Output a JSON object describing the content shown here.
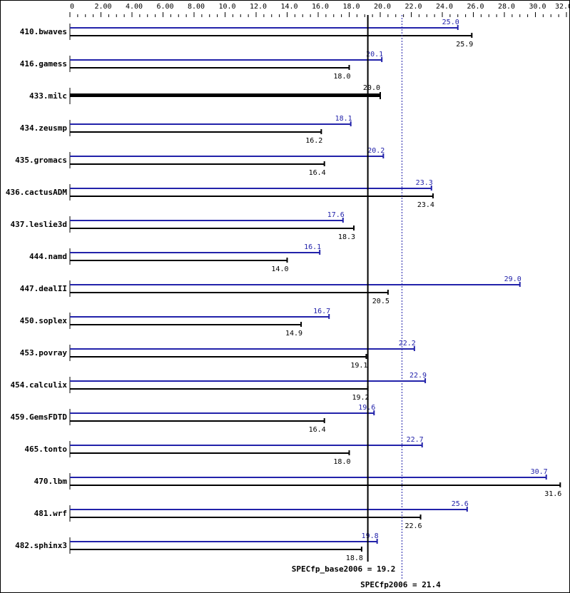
{
  "chart_data": {
    "type": "bar",
    "orientation": "horizontal",
    "xlim": [
      0,
      32
    ],
    "tick_labels": [
      "0",
      "2.00",
      "4.00",
      "6.00",
      "8.00",
      "10.0",
      "12.0",
      "14.0",
      "16.0",
      "18.0",
      "20.0",
      "22.0",
      "24.0",
      "26.0",
      "28.0",
      "30.0",
      "32.0"
    ],
    "tick_values": [
      0,
      2,
      4,
      6,
      8,
      10,
      12,
      14,
      16,
      18,
      20,
      22,
      24,
      26,
      28,
      30,
      32
    ],
    "categories": [
      "410.bwaves",
      "416.gamess",
      "433.milc",
      "434.zeusmp",
      "435.gromacs",
      "436.cactusADM",
      "437.leslie3d",
      "444.namd",
      "447.dealII",
      "450.soplex",
      "453.povray",
      "454.calculix",
      "459.GemsFDTD",
      "465.tonto",
      "470.lbm",
      "481.wrf",
      "482.sphinx3"
    ],
    "series": [
      {
        "key": "peak",
        "values": [
          25.0,
          20.1,
          null,
          18.1,
          20.2,
          23.3,
          17.6,
          16.1,
          29.0,
          16.7,
          22.2,
          22.9,
          19.6,
          22.7,
          30.7,
          25.6,
          19.8
        ],
        "color": "#2222aa"
      },
      {
        "key": "base",
        "values": [
          25.9,
          18.0,
          20.0,
          16.2,
          16.4,
          23.4,
          18.3,
          14.0,
          20.5,
          14.9,
          19.1,
          19.2,
          16.4,
          18.0,
          31.6,
          22.6,
          18.8
        ],
        "color": "#000000"
      }
    ],
    "base_labels": [
      "25.9",
      "18.0",
      "20.0",
      "16.2",
      "16.4",
      "23.4",
      "18.3",
      "14.0",
      "20.5",
      "14.9",
      "19.1",
      "19.2",
      "16.4",
      "18.0",
      "31.6",
      "22.6",
      "18.8"
    ],
    "peak_labels": [
      "25.0",
      "20.1",
      "",
      "18.1",
      "20.2",
      "23.3",
      "17.6",
      "16.1",
      "29.0",
      "16.7",
      "22.2",
      "22.9",
      "19.6",
      "22.7",
      "30.7",
      "25.6",
      "19.8"
    ],
    "reference_lines": [
      {
        "label": "SPECfp_base2006 = 19.2",
        "value": 19.2,
        "color": "#000000",
        "style": "solid"
      },
      {
        "label": "SPECfp2006 = 21.4",
        "value": 21.4,
        "color": "#2222aa",
        "style": "dotted"
      }
    ],
    "grid": false
  }
}
